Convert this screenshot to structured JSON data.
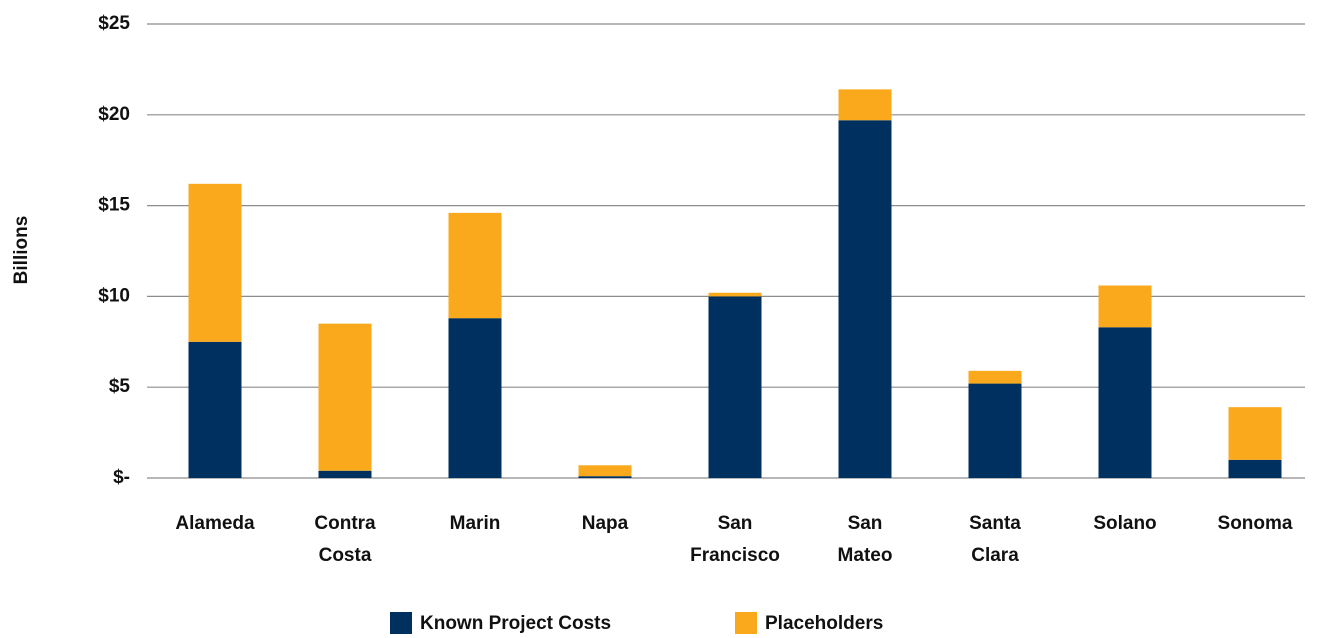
{
  "chart_data": {
    "type": "stacked_bar",
    "y_label": "Billions",
    "categories": [
      "Alameda",
      "Contra Costa",
      "Marin",
      "Napa",
      "San Francisco",
      "San Mateo",
      "Santa Clara",
      "Solano",
      "Sonoma"
    ],
    "series": [
      {
        "name": "Known Project Costs",
        "color": "#00305f",
        "values": [
          7.5,
          0.4,
          8.8,
          0.1,
          10.0,
          19.7,
          5.2,
          8.3,
          1.0
        ]
      },
      {
        "name": "Placeholders",
        "color": "#f9a91b",
        "values": [
          8.7,
          8.1,
          5.8,
          0.6,
          0.2,
          1.7,
          0.7,
          2.3,
          2.9
        ]
      }
    ],
    "ylim": [
      0,
      25
    ],
    "yticks": [
      {
        "value": 0,
        "label": "$-"
      },
      {
        "value": 5,
        "label": "$5"
      },
      {
        "value": 10,
        "label": "$10"
      },
      {
        "value": 15,
        "label": "$15"
      },
      {
        "value": 20,
        "label": "$20"
      },
      {
        "value": 25,
        "label": "$25"
      }
    ],
    "grid": true,
    "legend": "bottom"
  }
}
